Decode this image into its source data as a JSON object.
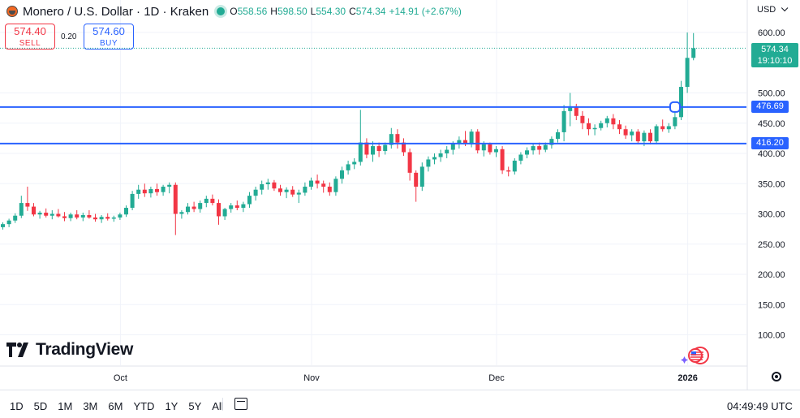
{
  "header": {
    "title": "Monero / U.S. Dollar · 1D · Kraken",
    "ohlc": [
      {
        "k": "O",
        "v": "558.56"
      },
      {
        "k": "H",
        "v": "598.50"
      },
      {
        "k": "L",
        "v": "554.30"
      },
      {
        "k": "C",
        "v": "574.34"
      }
    ],
    "change": "+14.91 (+2.67%)",
    "currency": "USD"
  },
  "trade": {
    "sell_price": "574.40",
    "sell_label": "SELL",
    "spread": "0.20",
    "buy_price": "574.60",
    "buy_label": "BUY"
  },
  "price_tag": {
    "price": "574.34",
    "countdown": "19:10:10"
  },
  "levels": [
    {
      "value": 476.69,
      "label": "476.69"
    },
    {
      "value": 416.2,
      "label": "416.20"
    }
  ],
  "branding": {
    "name": "TradingView"
  },
  "toolbar": {
    "ranges": [
      "1D",
      "5D",
      "1M",
      "3M",
      "6M",
      "YTD",
      "1Y",
      "5Y",
      "All"
    ],
    "time": "04:49:49 UTC"
  },
  "colors": {
    "up": "#22ab94",
    "down": "#f23645",
    "line": "#2962ff",
    "grid": "#f0f3fa"
  },
  "chart_data": {
    "type": "candlestick",
    "ylim": [
      50,
      620
    ],
    "yticks": [
      "100.00",
      "150.00",
      "200.00",
      "250.00",
      "300.00",
      "350.00",
      "400.00",
      "450.00",
      "500.00",
      "600.00"
    ],
    "xticks": [
      {
        "label": "Oct",
        "index": 19
      },
      {
        "label": "Nov",
        "index": 50
      },
      {
        "label": "Dec",
        "index": 80
      },
      {
        "label": "2026",
        "index": 111
      }
    ],
    "candles": [
      [
        278,
        286,
        274,
        283
      ],
      [
        283,
        292,
        278,
        289
      ],
      [
        289,
        301,
        285,
        297
      ],
      [
        297,
        330,
        293,
        318
      ],
      [
        318,
        345,
        305,
        312
      ],
      [
        312,
        318,
        296,
        299
      ],
      [
        299,
        305,
        292,
        302
      ],
      [
        302,
        309,
        294,
        297
      ],
      [
        297,
        306,
        291,
        300
      ],
      [
        300,
        308,
        294,
        296
      ],
      [
        296,
        303,
        288,
        293
      ],
      [
        293,
        302,
        288,
        299
      ],
      [
        299,
        306,
        291,
        294
      ],
      [
        294,
        302,
        288,
        298
      ],
      [
        298,
        306,
        292,
        294
      ],
      [
        294,
        300,
        287,
        291
      ],
      [
        291,
        298,
        285,
        295
      ],
      [
        295,
        301,
        289,
        292
      ],
      [
        292,
        297,
        287,
        294
      ],
      [
        294,
        302,
        290,
        299
      ],
      [
        299,
        314,
        295,
        310
      ],
      [
        310,
        338,
        306,
        333
      ],
      [
        333,
        348,
        325,
        340
      ],
      [
        340,
        350,
        328,
        334
      ],
      [
        334,
        345,
        327,
        341
      ],
      [
        341,
        350,
        330,
        336
      ],
      [
        336,
        348,
        330,
        345
      ],
      [
        345,
        352,
        334,
        348
      ],
      [
        348,
        352,
        265,
        300
      ],
      [
        300,
        306,
        292,
        303
      ],
      [
        303,
        318,
        299,
        312
      ],
      [
        312,
        320,
        303,
        308
      ],
      [
        308,
        322,
        302,
        318
      ],
      [
        318,
        330,
        311,
        325
      ],
      [
        325,
        332,
        314,
        318
      ],
      [
        318,
        324,
        282,
        296
      ],
      [
        296,
        310,
        290,
        308
      ],
      [
        308,
        318,
        302,
        314
      ],
      [
        314,
        322,
        306,
        310
      ],
      [
        310,
        320,
        303,
        316
      ],
      [
        316,
        336,
        310,
        330
      ],
      [
        330,
        345,
        322,
        340
      ],
      [
        340,
        355,
        332,
        349
      ],
      [
        349,
        358,
        340,
        352
      ],
      [
        352,
        356,
        338,
        342
      ],
      [
        342,
        348,
        330,
        336
      ],
      [
        336,
        344,
        326,
        340
      ],
      [
        340,
        346,
        328,
        332
      ],
      [
        332,
        340,
        318,
        335
      ],
      [
        335,
        352,
        330,
        345
      ],
      [
        345,
        360,
        340,
        355
      ],
      [
        355,
        365,
        342,
        350
      ],
      [
        350,
        355,
        335,
        345
      ],
      [
        345,
        352,
        330,
        336
      ],
      [
        336,
        362,
        330,
        358
      ],
      [
        358,
        378,
        350,
        372
      ],
      [
        372,
        388,
        365,
        382
      ],
      [
        382,
        392,
        374,
        386
      ],
      [
        386,
        472,
        380,
        418
      ],
      [
        418,
        425,
        392,
        398
      ],
      [
        398,
        420,
        386,
        412
      ],
      [
        412,
        418,
        394,
        404
      ],
      [
        404,
        418,
        398,
        414
      ],
      [
        414,
        442,
        408,
        432
      ],
      [
        432,
        440,
        408,
        418
      ],
      [
        418,
        425,
        396,
        402
      ],
      [
        402,
        408,
        355,
        368
      ],
      [
        368,
        372,
        320,
        345
      ],
      [
        345,
        385,
        338,
        378
      ],
      [
        378,
        395,
        370,
        390
      ],
      [
        390,
        400,
        382,
        394
      ],
      [
        394,
        406,
        386,
        400
      ],
      [
        400,
        412,
        392,
        406
      ],
      [
        406,
        420,
        398,
        416
      ],
      [
        416,
        428,
        408,
        422
      ],
      [
        422,
        437,
        412,
        415
      ],
      [
        415,
        440,
        410,
        436
      ],
      [
        436,
        440,
        400,
        405
      ],
      [
        405,
        420,
        395,
        415
      ],
      [
        415,
        418,
        398,
        402
      ],
      [
        402,
        412,
        394,
        407
      ],
      [
        407,
        412,
        366,
        372
      ],
      [
        372,
        378,
        362,
        370
      ],
      [
        370,
        392,
        365,
        388
      ],
      [
        388,
        402,
        382,
        398
      ],
      [
        398,
        410,
        392,
        405
      ],
      [
        405,
        416,
        398,
        412
      ],
      [
        412,
        418,
        398,
        406
      ],
      [
        406,
        418,
        402,
        414
      ],
      [
        414,
        428,
        408,
        424
      ],
      [
        424,
        440,
        418,
        435
      ],
      [
        435,
        480,
        420,
        470
      ],
      [
        470,
        500,
        445,
        478
      ],
      [
        478,
        482,
        455,
        462
      ],
      [
        462,
        470,
        440,
        450
      ],
      [
        450,
        458,
        430,
        440
      ],
      [
        440,
        448,
        430,
        442
      ],
      [
        442,
        454,
        438,
        450
      ],
      [
        450,
        462,
        443,
        458
      ],
      [
        458,
        465,
        440,
        448
      ],
      [
        448,
        455,
        432,
        440
      ],
      [
        440,
        446,
        424,
        430
      ],
      [
        430,
        440,
        420,
        436
      ],
      [
        436,
        440,
        415,
        420
      ],
      [
        420,
        438,
        412,
        434
      ],
      [
        434,
        440,
        415,
        420
      ],
      [
        420,
        448,
        415,
        445
      ],
      [
        445,
        456,
        436,
        440
      ],
      [
        440,
        450,
        434,
        445
      ],
      [
        445,
        470,
        440,
        460
      ],
      [
        460,
        520,
        455,
        510
      ],
      [
        510,
        600,
        500,
        558
      ],
      [
        558,
        599,
        554,
        574
      ]
    ]
  }
}
